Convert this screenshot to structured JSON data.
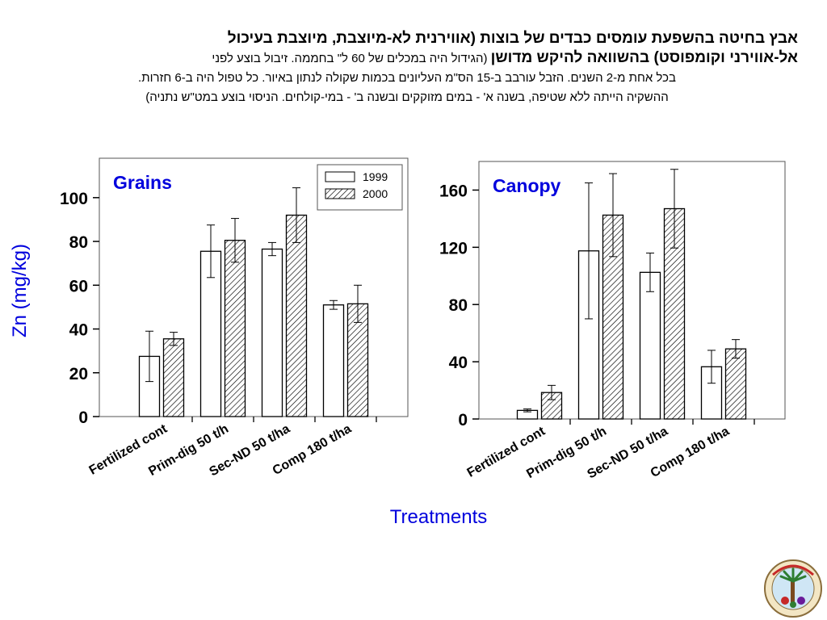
{
  "title": {
    "line1": "אבץ בחיטה בהשפעת עומסים כבדים של בוצות (אווירנית לא-מיוצבת, מיוצבת בעיכול",
    "line2_bold": "אל-אווירני וקומפוסט) בהשוואה להיקש מדושן",
    "line2_normal": " (הגידול היה במכלים של 60 ל\" בחממה. זיבול בוצע לפני",
    "line3": "בכל אחת מ-2 השנים. הזבל עורבב ב-15 הס\"מ העליונים בכמות שקולה לנתון באיור. כל טפול היה ב-6 חזרות.",
    "line4": "ההשקיה הייתה ללא שטיפה, בשנה א' - במים מזוקקים ובשנה ב' - במי-קולחים. הניסוי בוצע במט\"ש נתניה)"
  },
  "ylabel": "Zn (mg/kg)",
  "xlabel": "Treatments",
  "colors": {
    "axis_label": "#0000dd",
    "panel_title": "#0000dd",
    "bar_1999": "#ffffff",
    "bar_2000_hatch": "#000000"
  },
  "chart_data": [
    {
      "type": "bar",
      "title": "Grains",
      "categories": [
        "Fertilized cont",
        "Prim-dig 50 t/h",
        "Sec-ND 50 t/ha",
        "Comp 180 t/ha"
      ],
      "ylim": [
        0,
        118
      ],
      "yticks": [
        0,
        20,
        40,
        60,
        80,
        100
      ],
      "legend": {
        "position": "top-right",
        "entries": [
          "1999",
          "2000"
        ]
      },
      "series": [
        {
          "name": "1999",
          "values": [
            27.5,
            75.5,
            76.5,
            51
          ],
          "errors": [
            11.5,
            12,
            3,
            2
          ]
        },
        {
          "name": "2000",
          "values": [
            35.5,
            80.5,
            92,
            51.5
          ],
          "errors": [
            3,
            10,
            12.5,
            8.5
          ]
        }
      ]
    },
    {
      "type": "bar",
      "title": "Canopy",
      "categories": [
        "Fertilized cont",
        "Prim-dig 50 t/h",
        "Sec-ND 50 t/ha",
        "Comp 180 t/ha"
      ],
      "ylim": [
        0,
        180
      ],
      "yticks": [
        0,
        40,
        80,
        120,
        160
      ],
      "series": [
        {
          "name": "1999",
          "values": [
            6,
            117.5,
            102.5,
            36.5
          ],
          "errors": [
            1,
            47.5,
            13.5,
            11.5
          ]
        },
        {
          "name": "2000",
          "values": [
            18.5,
            142.5,
            147,
            49
          ],
          "errors": [
            5,
            29,
            27.5,
            6.5
          ]
        }
      ]
    }
  ]
}
